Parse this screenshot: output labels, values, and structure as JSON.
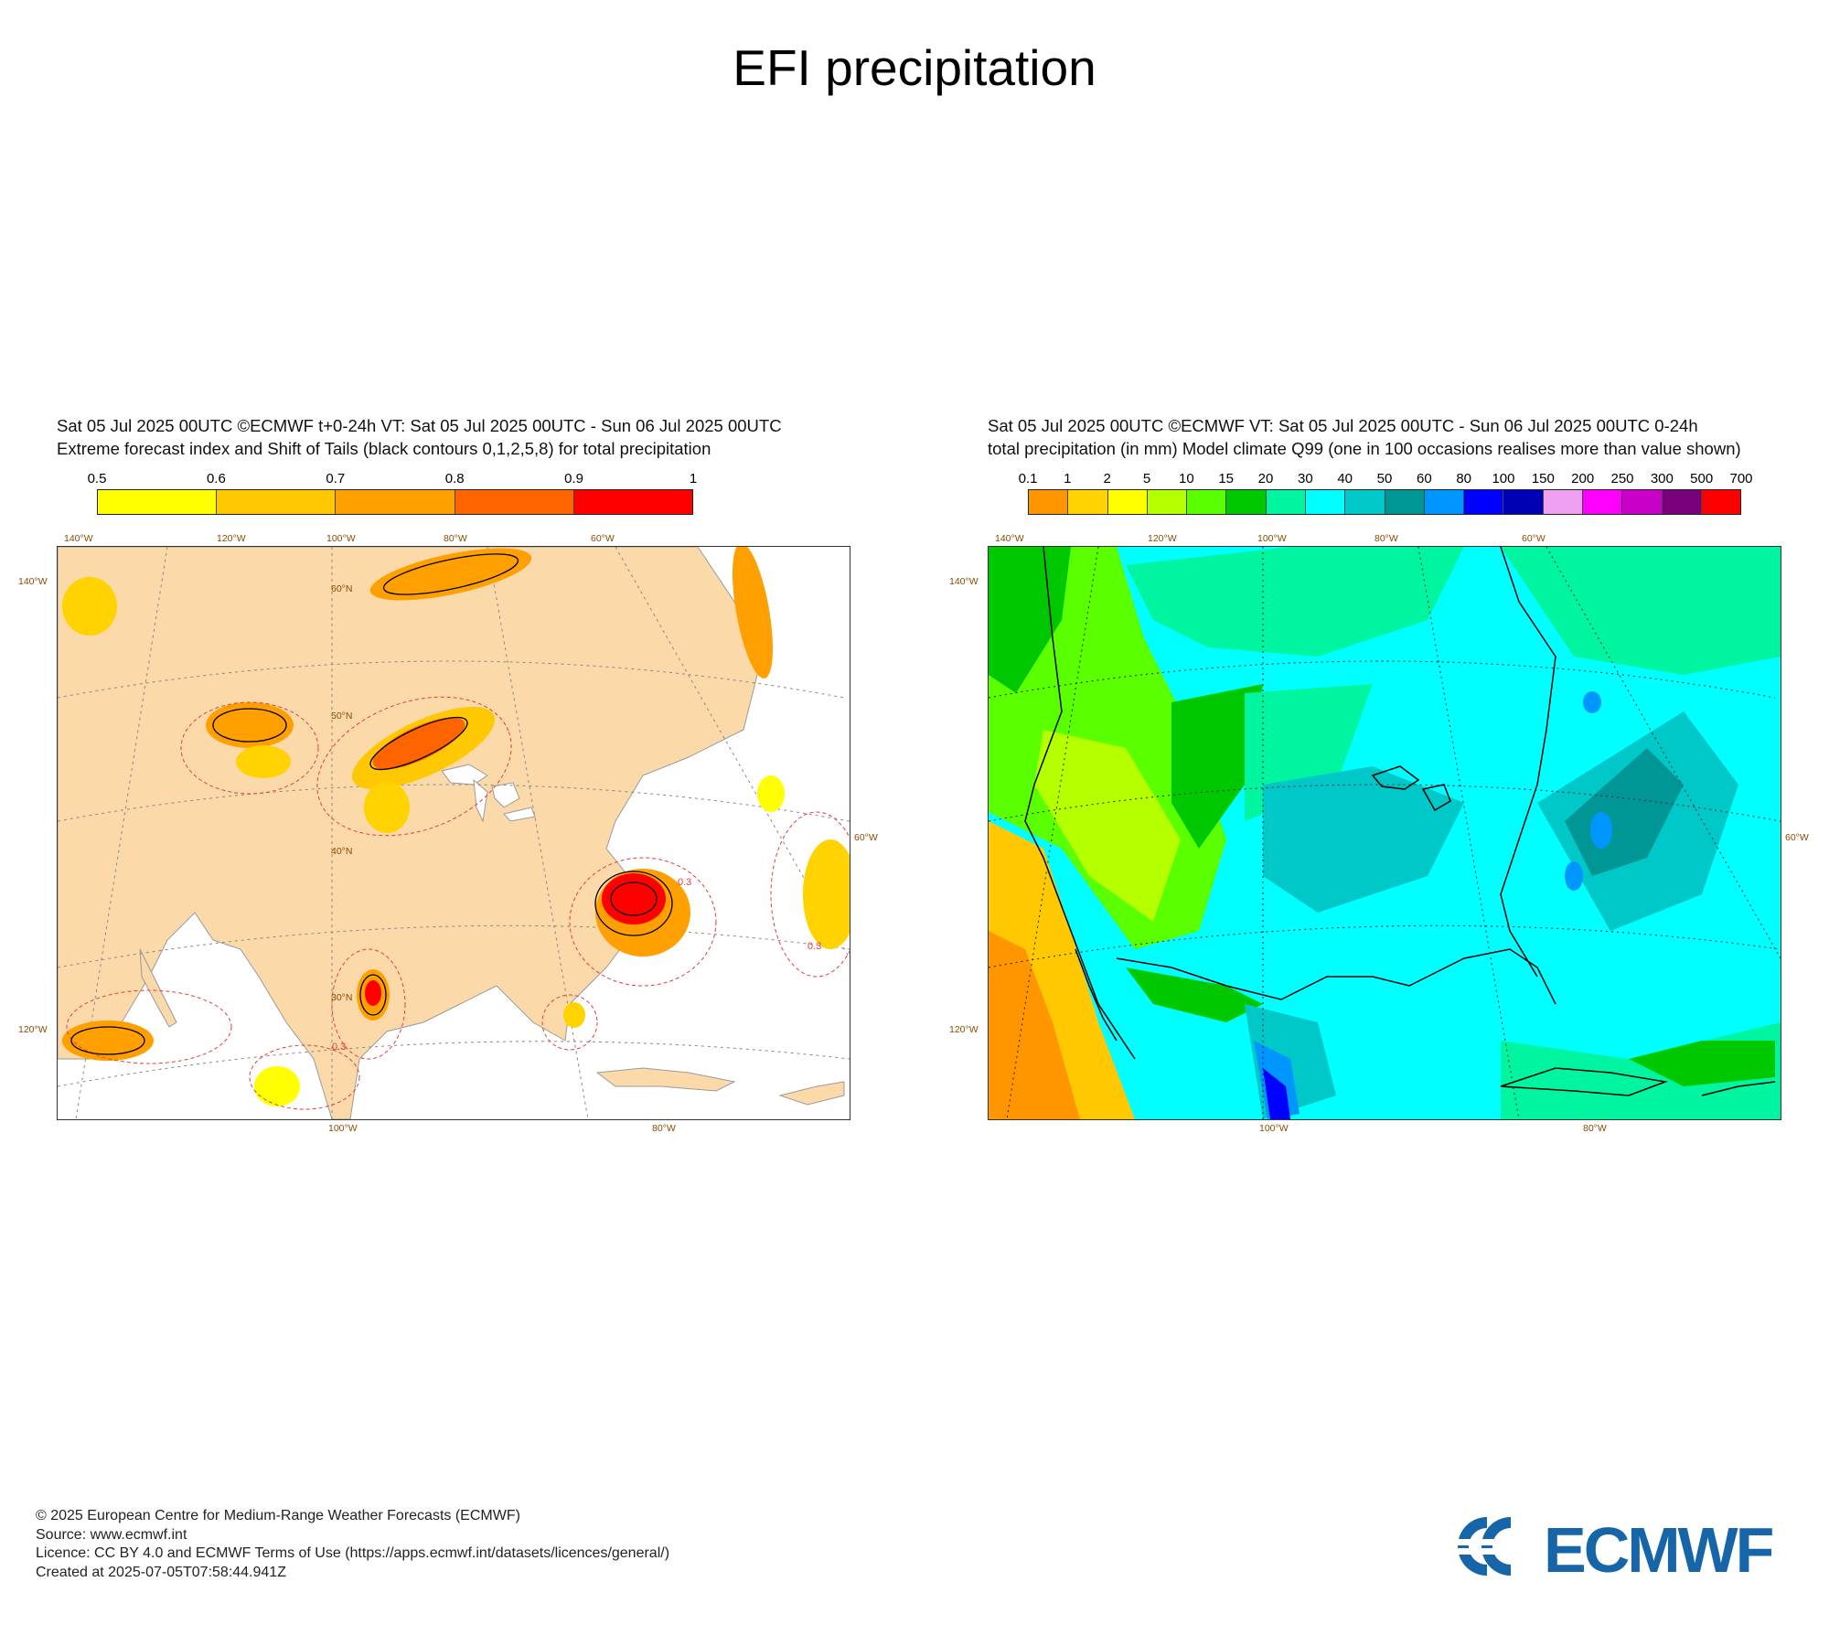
{
  "page": {
    "title": "EFI precipitation"
  },
  "left_panel": {
    "header_line1": "Sat 05 Jul 2025 00UTC ©ECMWF t+0-24h  VT: Sat 05 Jul 2025 00UTC - Sun 06 Jul 2025 00UTC",
    "header_line2": "Extreme forecast index and Shift of Tails (black contours 0,1,2,5,8) for total precipitation",
    "colorbar": {
      "tick_labels": [
        "0.5",
        "0.6",
        "0.7",
        "0.8",
        "0.9",
        "1"
      ],
      "colors": [
        "#ffff00",
        "#ffc800",
        "#ff9f00",
        "#ff6400",
        "#ff0000"
      ]
    },
    "map_labels": {
      "top_lon": [
        "140°W",
        "120°W",
        "100°W",
        "80°W",
        "60°W"
      ],
      "bottom_lon": [
        "100°W",
        "80°W"
      ],
      "left": [
        "140°W",
        "120°W"
      ],
      "right": [
        "60°W"
      ],
      "inner": [
        "60°N",
        "50°N",
        "40°N",
        "30°N"
      ],
      "contour_value": "0.3"
    }
  },
  "right_panel": {
    "header_line1": "Sat 05 Jul 2025 00UTC ©ECMWF VT: Sat 05 Jul 2025 00UTC - Sun 06 Jul 2025 00UTC   0-24h",
    "header_line2": "total precipitation (in mm)  Model climate Q99 (one in 100 occasions realises more than value shown)",
    "colorbar": {
      "tick_labels": [
        "0.1",
        "1",
        "2",
        "5",
        "10",
        "15",
        "20",
        "30",
        "40",
        "50",
        "60",
        "80",
        "100",
        "150",
        "200",
        "250",
        "300",
        "500",
        "700"
      ],
      "colors": [
        "#ff9600",
        "#ffd200",
        "#ffff00",
        "#b4ff00",
        "#5aff00",
        "#00c800",
        "#00f5a0",
        "#00ffff",
        "#00c8c8",
        "#009696",
        "#0096ff",
        "#0000ff",
        "#0000b4",
        "#f0a0f0",
        "#ff00ff",
        "#c800c8",
        "#780078",
        "#ff0000"
      ]
    },
    "map_labels": {
      "top_lon": [
        "140°W",
        "120°W",
        "100°W",
        "80°W",
        "60°W"
      ],
      "bottom_lon": [
        "100°W",
        "80°W"
      ],
      "left": [
        "140°W",
        "120°W"
      ],
      "right": [
        "60°W"
      ]
    }
  },
  "footer": {
    "line1": "© 2025 European Centre for Medium-Range Weather Forecasts (ECMWF)",
    "line2": "Source: www.ecmwf.int",
    "line3": "Licence: CC BY 4.0 and ECMWF Terms of Use (https://apps.ecmwf.int/datasets/licences/general/)",
    "line4": "Created at 2025-07-05T07:58:44.941Z"
  },
  "logo": {
    "text": "ECMWF",
    "color": "#1565a8"
  }
}
